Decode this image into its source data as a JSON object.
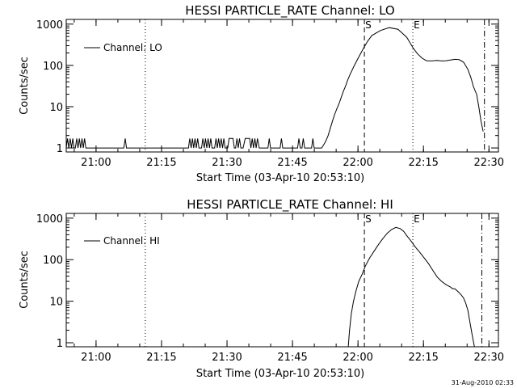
{
  "footer_timestamp": "31-Aug-2010 02:33",
  "chart_data": [
    {
      "type": "line",
      "title": "HESSI PARTICLE_RATE Channel: LO",
      "xlabel": "Start Time (03-Apr-10 20:53:10)",
      "ylabel": "Counts/sec",
      "y_scale": "log",
      "ylim": [
        0.8,
        1300
      ],
      "xlim_min": [
        0,
        99
      ],
      "x_ticks": [
        "21:00",
        "21:15",
        "21:30",
        "21:45",
        "22:00",
        "22:15",
        "22:30"
      ],
      "y_ticks": [
        "1",
        "10",
        "100",
        "1000"
      ],
      "legend": "Channel: LO",
      "legend_position": "top-left",
      "markers": [
        {
          "label": "",
          "style": "dotted",
          "x_min": 18.1
        },
        {
          "label": "S",
          "style": "dashed",
          "x_min": 68.3
        },
        {
          "label": "E",
          "style": "dotted",
          "x_min": 79.4
        },
        {
          "label": "",
          "style": "dashdot",
          "x_min": 95.8
        }
      ],
      "series": [
        {
          "name": "Channel: LO",
          "x_min": [
            0,
            0.3,
            0.6,
            0.9,
            1.2,
            1.5,
            1.8,
            2.1,
            2.4,
            2.7,
            3,
            3.3,
            3.6,
            3.9,
            4.2,
            4.5,
            5,
            13.2,
            13.5,
            13.8,
            14.1,
            14.5,
            28,
            28.3,
            28.6,
            28.9,
            29.2,
            29.5,
            29.8,
            30.1,
            30.4,
            30.7,
            31,
            31.3,
            31.6,
            31.9,
            32.2,
            32.5,
            32.8,
            33.1,
            33.4,
            33.7,
            34,
            34.3,
            34.6,
            34.9,
            35.2,
            35.5,
            35.8,
            36.1,
            36.4,
            36.7,
            37,
            37.3,
            37.6,
            37.9,
            38.2,
            38.5,
            38.8,
            39.1,
            39.4,
            39.7,
            40,
            40.5,
            41,
            41.5,
            42,
            42.3,
            42.6,
            42.9,
            43.2,
            43.5,
            43.8,
            44.2,
            46.2,
            46.5,
            46.8,
            47.2,
            49,
            49.3,
            49.6,
            50,
            53,
            53.3,
            53.6,
            54,
            54.3,
            54.6,
            55,
            55.5,
            56.2,
            56.5,
            56.8,
            57.2,
            58.5,
            59,
            59.5,
            60,
            60.5,
            61,
            61.5,
            62,
            62.5,
            63,
            63.5,
            64,
            64.5,
            65,
            66,
            67,
            68,
            69,
            70,
            72,
            74,
            76,
            78,
            79.5,
            80.5,
            81.5,
            82.5,
            83.5,
            85,
            86,
            87,
            88,
            89,
            90,
            91,
            92,
            92.7,
            93.3,
            94,
            94.5,
            95,
            95.5
          ],
          "values": [
            1,
            1.7,
            1,
            1.7,
            1,
            1.7,
            1,
            1,
            1.7,
            1,
            1.7,
            1,
            1.7,
            1,
            1.7,
            1,
            1,
            1,
            1.7,
            1,
            1,
            1,
            1,
            1.7,
            1,
            1.7,
            1,
            1.7,
            1,
            1.7,
            1,
            1,
            1,
            1.7,
            1,
            1.7,
            1,
            1.7,
            1,
            1.7,
            1,
            1,
            1,
            1.7,
            1,
            1.7,
            1,
            1.7,
            1,
            1.7,
            1,
            1,
            1,
            1.7,
            1.7,
            1.7,
            1.7,
            1,
            1,
            1.7,
            1,
            1.7,
            1,
            1,
            1.7,
            1.7,
            1.7,
            1,
            1.7,
            1,
            1.7,
            1,
            1.7,
            1,
            1,
            1.7,
            1,
            1,
            1,
            1.7,
            1,
            1,
            1,
            1.7,
            1,
            1,
            1.7,
            1,
            1,
            1,
            1,
            1.7,
            1,
            1,
            1,
            1.2,
            1.5,
            2,
            3,
            4.5,
            6.5,
            9,
            12,
            17,
            24,
            32,
            45,
            60,
            100,
            160,
            250,
            380,
            530,
            700,
            820,
            750,
            480,
            260,
            190,
            150,
            130,
            128,
            132,
            128,
            130,
            135,
            140,
            138,
            120,
            80,
            50,
            30,
            20,
            10,
            4.5,
            2.5
          ]
        }
      ]
    },
    {
      "type": "line",
      "title": "HESSI PARTICLE_RATE Channel: HI",
      "xlabel": "Start Time (03-Apr-10 20:53:10)",
      "ylabel": "Counts/sec",
      "y_scale": "log",
      "ylim": [
        0.8,
        1300
      ],
      "xlim_min": [
        0,
        99
      ],
      "x_ticks": [
        "21:00",
        "21:15",
        "21:30",
        "21:45",
        "22:00",
        "22:15",
        "22:30"
      ],
      "y_ticks": [
        "1",
        "10",
        "100",
        "1000"
      ],
      "legend": "Channel: HI",
      "legend_position": "top-left",
      "markers": [
        {
          "label": "",
          "style": "dotted",
          "x_min": 18.1
        },
        {
          "label": "S",
          "style": "dashed",
          "x_min": 68.3
        },
        {
          "label": "E",
          "style": "dotted",
          "x_min": 79.4
        },
        {
          "label": "",
          "style": "dashdot",
          "x_min": 95.2
        }
      ],
      "series": [
        {
          "name": "Channel: HI",
          "x_min": [
            64.6,
            64.9,
            65.3,
            65.8,
            66.4,
            67,
            67.8,
            68.5,
            69.5,
            70.5,
            71.5,
            72.5,
            73.5,
            74.5,
            75.5,
            76.5,
            77.3,
            78,
            79,
            80,
            81,
            82,
            83,
            84,
            85,
            86,
            87,
            88,
            88.5,
            89,
            89.5,
            90,
            90.5,
            91,
            91.5,
            92,
            92.5,
            93,
            93.5
          ],
          "values": [
            0.8,
            2,
            5,
            10,
            18,
            30,
            45,
            70,
            110,
            160,
            230,
            320,
            430,
            530,
            600,
            560,
            480,
            380,
            280,
            200,
            150,
            110,
            80,
            55,
            38,
            30,
            25,
            22,
            20,
            20,
            18,
            16,
            14,
            12,
            9,
            6,
            3,
            1.5,
            0.8
          ]
        }
      ]
    }
  ]
}
